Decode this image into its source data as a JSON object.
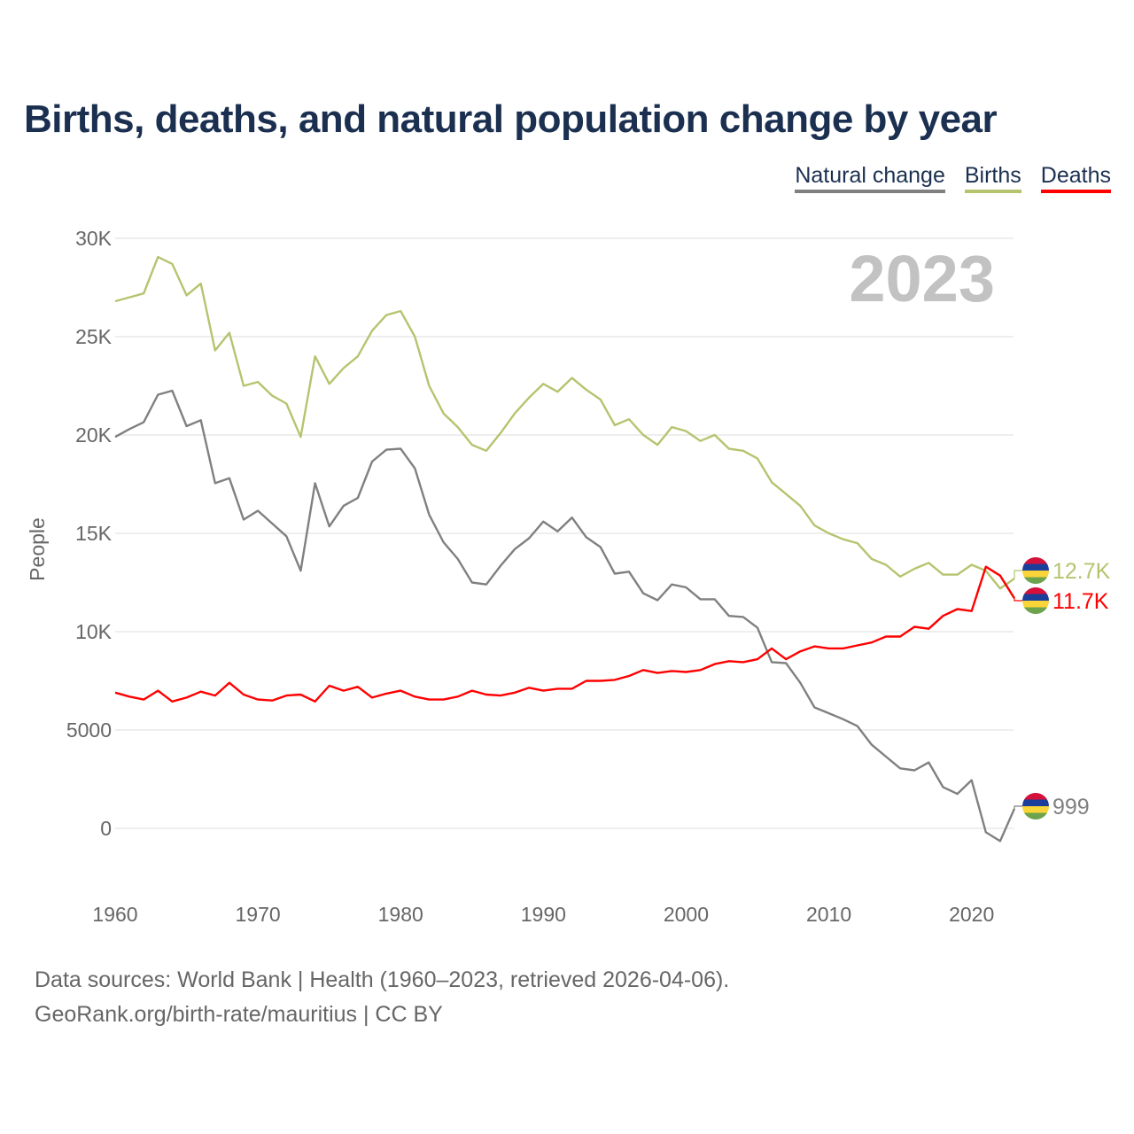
{
  "title": "Births, deaths, and natural population change by year",
  "legend": [
    {
      "label": "Natural change",
      "color": "#808080"
    },
    {
      "label": "Births",
      "color": "#b5c46f"
    },
    {
      "label": "Deaths",
      "color": "#ff0000"
    }
  ],
  "footer": {
    "line1": "Data sources: World Bank | Health (1960–2023, retrieved 2026-04-06).",
    "line2": "GeoRank.org/birth-rate/mauritius | CC BY"
  },
  "flag_colors": [
    "#d5103a",
    "#1a3e9a",
    "#fad539",
    "#6da34d"
  ],
  "chart_data": {
    "type": "line",
    "title": "Births, deaths, and natural population change by year",
    "year_watermark": "2023",
    "xlabel": "",
    "ylabel": "People",
    "xlim": [
      1960,
      2023
    ],
    "ylim": [
      -1500,
      30000
    ],
    "x_ticks": [
      "1960",
      "1970",
      "1980",
      "1990",
      "2000",
      "2010",
      "2020"
    ],
    "x_tick_values": [
      1960,
      1970,
      1980,
      1990,
      2000,
      2010,
      2020
    ],
    "y_ticks": [
      "0",
      "5000",
      "10K",
      "15K",
      "20K",
      "25K",
      "30K"
    ],
    "y_tick_values": [
      0,
      5000,
      10000,
      15000,
      20000,
      25000,
      30000
    ],
    "grid": true,
    "start_year": 1960,
    "series": [
      {
        "name": "Natural change",
        "color": "#808080",
        "end_label": "999",
        "values": [
          19900,
          20300,
          20650,
          22050,
          22250,
          20450,
          20750,
          17550,
          17800,
          15700,
          16150,
          15500,
          14850,
          13100,
          17550,
          15350,
          16400,
          16800,
          18650,
          19250,
          19300,
          18300,
          15950,
          14550,
          13700,
          12500,
          12400,
          13350,
          14200,
          14750,
          15600,
          15100,
          15800,
          14800,
          14300,
          12950,
          13050,
          11950,
          11600,
          12400,
          12250,
          11650,
          11650,
          10800,
          10750,
          10200,
          8450,
          8400,
          7400,
          6150,
          5850,
          5550,
          5200,
          4250,
          3650,
          3050,
          2950,
          3350,
          2100,
          1750,
          2450,
          -200,
          -650,
          999
        ]
      },
      {
        "name": "Births",
        "color": "#b5c46f",
        "end_label": "12.7K",
        "values": [
          26800,
          27000,
          27200,
          29050,
          28700,
          27100,
          27700,
          24300,
          25200,
          22500,
          22700,
          22000,
          21600,
          19900,
          24000,
          22600,
          23400,
          24000,
          25300,
          26100,
          26300,
          25000,
          22500,
          21100,
          20400,
          19500,
          19200,
          20100,
          21100,
          21900,
          22600,
          22200,
          22900,
          22300,
          21800,
          20500,
          20800,
          20000,
          19500,
          20400,
          20200,
          19700,
          20000,
          19300,
          19200,
          18800,
          17600,
          17000,
          16400,
          15400,
          15000,
          14700,
          14500,
          13700,
          13400,
          12800,
          13200,
          13500,
          12900,
          12900,
          13400,
          13100,
          12200,
          12700
        ]
      },
      {
        "name": "Deaths",
        "color": "#ff0000",
        "end_label": "11.7K",
        "values": [
          6900,
          6700,
          6550,
          7000,
          6450,
          6650,
          6950,
          6750,
          7400,
          6800,
          6550,
          6500,
          6750,
          6800,
          6450,
          7250,
          7000,
          7200,
          6650,
          6850,
          7000,
          6700,
          6550,
          6550,
          6700,
          7000,
          6800,
          6750,
          6900,
          7150,
          7000,
          7100,
          7100,
          7500,
          7500,
          7550,
          7750,
          8050,
          7900,
          8000,
          7950,
          8050,
          8350,
          8500,
          8450,
          8600,
          9150,
          8600,
          9000,
          9250,
          9150,
          9150,
          9300,
          9450,
          9750,
          9750,
          10250,
          10150,
          10800,
          11150,
          11050,
          13300,
          12850,
          11700
        ]
      }
    ]
  }
}
